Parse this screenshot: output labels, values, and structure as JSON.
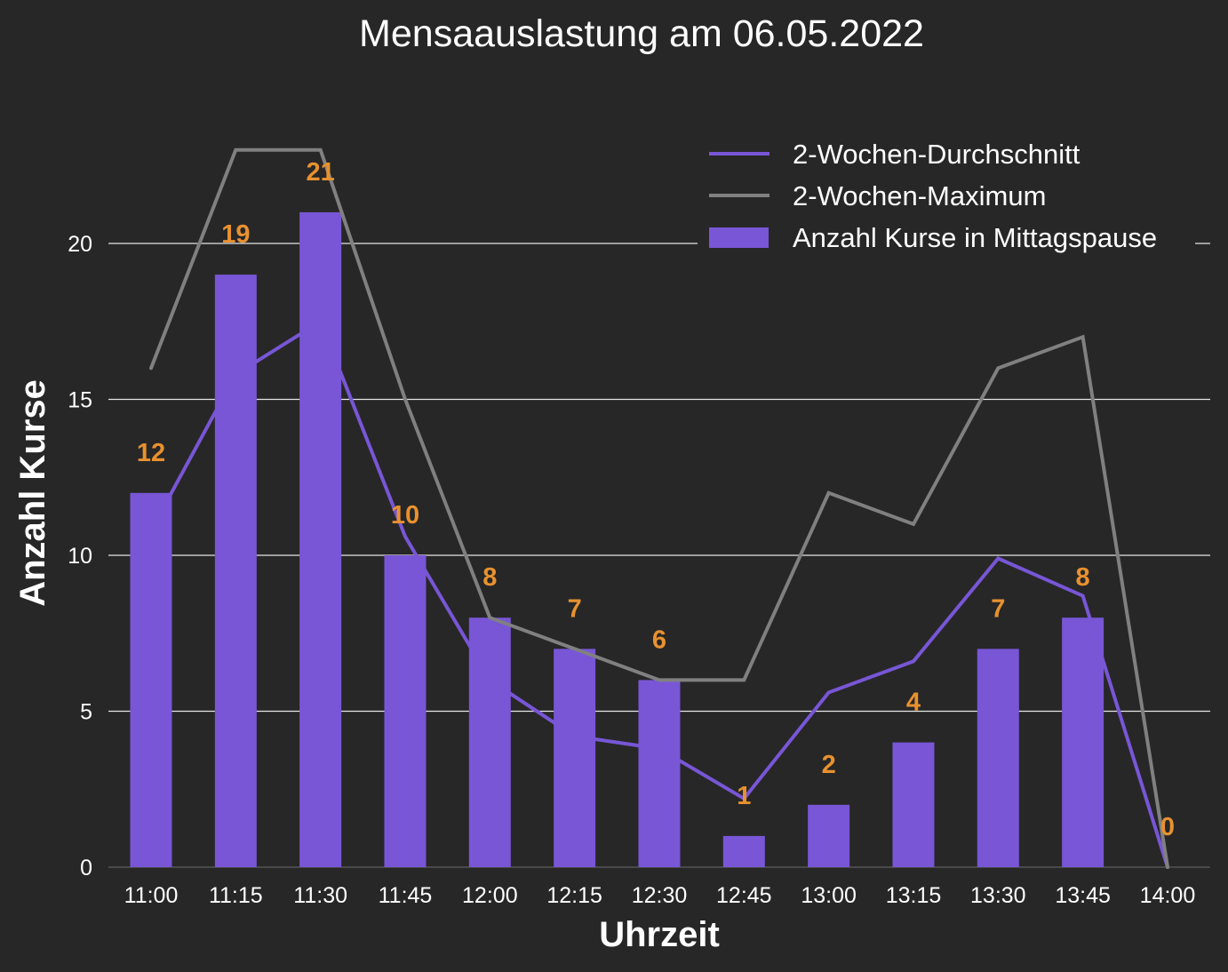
{
  "chart_data": {
    "type": "bar",
    "title": "Mensaauslastung am 06.05.2022",
    "xlabel": "Uhrzeit",
    "ylabel": "Anzahl Kurse",
    "categories": [
      "11:00",
      "11:15",
      "11:30",
      "11:45",
      "12:00",
      "12:15",
      "12:30",
      "12:45",
      "13:00",
      "13:15",
      "13:30",
      "13:45",
      "14:00"
    ],
    "ylim": [
      0,
      24
    ],
    "yticks": [
      "0",
      "5",
      "10",
      "15",
      "20"
    ],
    "grid": true,
    "legend_position": "top-right",
    "series": [
      {
        "name": "Anzahl Kurse in Mittagspause",
        "type": "bar",
        "color": "#7856d6",
        "values": [
          12,
          19,
          21,
          10,
          8,
          7,
          6,
          1,
          2,
          4,
          7,
          8,
          0
        ]
      },
      {
        "name": "2-Wochen-Durchschnitt",
        "type": "line",
        "color": "#7856d6",
        "values": [
          10.8,
          15.8,
          17.5,
          10.6,
          6.0,
          4.2,
          3.8,
          2.2,
          5.6,
          6.6,
          9.9,
          8.7,
          0
        ]
      },
      {
        "name": "2-Wochen-Maximum",
        "type": "line",
        "color": "#808080",
        "values": [
          16,
          23,
          23,
          15,
          8,
          7,
          6,
          6,
          12,
          11,
          16,
          17,
          0
        ]
      }
    ],
    "data_label_color": "#e8912f",
    "data_labels": [
      "12",
      "19",
      "21",
      "10",
      "8",
      "7",
      "6",
      "1",
      "2",
      "4",
      "7",
      "8",
      "0"
    ]
  }
}
